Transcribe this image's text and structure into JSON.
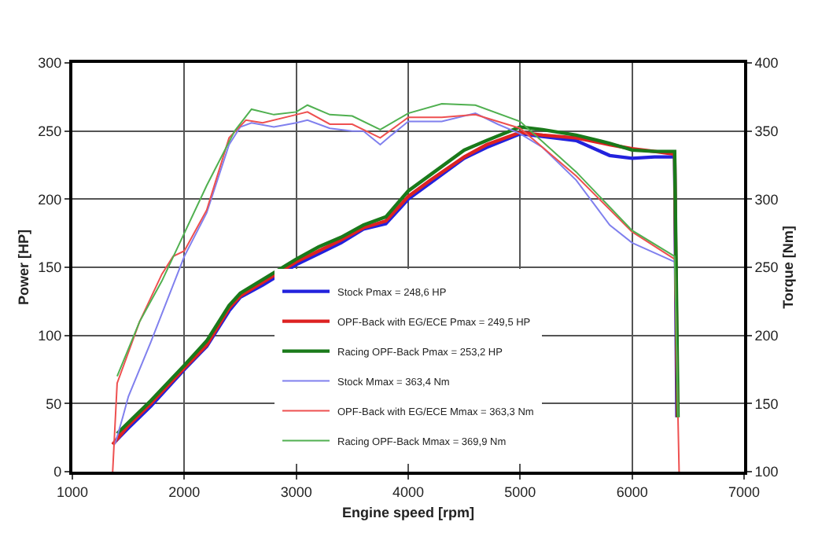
{
  "chart_data": {
    "type": "line",
    "xlabel": "Engine speed [rpm]",
    "ylabel": "Power [HP]",
    "y2label": "Torque [Nm]",
    "xlim": [
      1000,
      7000
    ],
    "xticks": [
      1000,
      2000,
      3000,
      4000,
      5000,
      6000,
      7000
    ],
    "ylim": [
      0,
      300
    ],
    "yticks": [
      0,
      50,
      100,
      150,
      200,
      250,
      300
    ],
    "y2lim": [
      100,
      400
    ],
    "y2ticks": [
      100,
      150,
      200,
      250,
      300,
      350,
      400
    ],
    "grid": true,
    "legend": "bottom",
    "marker": "none",
    "line_style": "solid",
    "series": [
      {
        "name": "Stock Pmax = 248,6 HP",
        "color": "#2222dd",
        "x": [
          1380,
          1500,
          1700,
          2000,
          2200,
          2400,
          2500,
          2700,
          3000,
          3200,
          3400,
          3600,
          3800,
          4000,
          4200,
          4500,
          4700,
          5000,
          5200,
          5500,
          5800,
          6000,
          6200,
          6380,
          6400
        ],
        "values": [
          22,
          32,
          48,
          75,
          92,
          118,
          128,
          137,
          152,
          160,
          168,
          178,
          182,
          200,
          212,
          230,
          238,
          248,
          246,
          243,
          232,
          230,
          231,
          231,
          40
        ]
      },
      {
        "name": "OPF-Back with EG/ECE Pmax = 249,5 HP",
        "color": "#dd2222",
        "x": [
          1360,
          1500,
          1700,
          2000,
          2200,
          2400,
          2500,
          2700,
          3000,
          3200,
          3400,
          3600,
          3800,
          4000,
          4200,
          4500,
          4700,
          5000,
          5200,
          5500,
          5800,
          6000,
          6200,
          6380,
          6405
        ],
        "values": [
          20,
          34,
          50,
          76,
          93,
          120,
          129,
          139,
          154,
          162,
          170,
          179,
          184,
          202,
          214,
          231,
          240,
          249,
          247,
          245,
          240,
          237,
          235,
          233,
          40
        ]
      },
      {
        "name": "Racing OPF-Back Pmax = 253,2 HP",
        "color": "#1a7a1a",
        "x": [
          1400,
          1500,
          1700,
          2000,
          2200,
          2400,
          2500,
          2700,
          3000,
          3200,
          3400,
          3600,
          3800,
          4000,
          4200,
          4500,
          4700,
          5000,
          5200,
          5500,
          5800,
          6000,
          6200,
          6380,
          6410
        ],
        "values": [
          28,
          36,
          52,
          78,
          96,
          122,
          131,
          141,
          156,
          165,
          172,
          181,
          187,
          206,
          218,
          236,
          243,
          253,
          251,
          247,
          241,
          236,
          235,
          235,
          40
        ]
      },
      {
        "name": "Stock Mmax = 363,4 Nm",
        "color": "#8080ee",
        "axis": "y2",
        "x": [
          1380,
          1450,
          1500,
          1700,
          2000,
          2200,
          2400,
          2500,
          2600,
          2800,
          3000,
          3100,
          3300,
          3500,
          3600,
          3750,
          3850,
          4000,
          4300,
          4600,
          4800,
          5000,
          5200,
          5500,
          5800,
          6000,
          6380
        ],
        "values": [
          120,
          140,
          155,
          195,
          258,
          290,
          340,
          353,
          356,
          353,
          356,
          358,
          352,
          350,
          350,
          340,
          347,
          357,
          357,
          363,
          355,
          348,
          338,
          314,
          281,
          268,
          254
        ]
      },
      {
        "name": "OPF-Back with EG/ECE Mmax = 363,3 Nm",
        "color": "#ee5050",
        "axis": "y2",
        "x": [
          1360,
          1400,
          1600,
          1800,
          1900,
          2000,
          2200,
          2400,
          2550,
          2700,
          3000,
          3100,
          3300,
          3500,
          3750,
          4000,
          4300,
          4600,
          5000,
          5500,
          6000,
          6380,
          6420
        ],
        "values": [
          100,
          165,
          210,
          245,
          258,
          262,
          292,
          345,
          358,
          356,
          362,
          364,
          355,
          355,
          345,
          360,
          360,
          362,
          352,
          317,
          276,
          256,
          100
        ]
      },
      {
        "name": "Racing OPF-Back Mmax = 369,9 Nm",
        "color": "#50b050",
        "axis": "y2",
        "x": [
          1400,
          1600,
          1800,
          2000,
          2200,
          2450,
          2600,
          2800,
          3000,
          3100,
          3300,
          3500,
          3750,
          4000,
          4300,
          4600,
          5000,
          5500,
          6000,
          6380,
          6410
        ],
        "values": [
          170,
          210,
          240,
          275,
          310,
          350,
          366,
          362,
          364,
          369,
          362,
          361,
          351,
          363,
          370,
          369,
          357,
          320,
          277,
          258,
          140
        ]
      }
    ]
  }
}
